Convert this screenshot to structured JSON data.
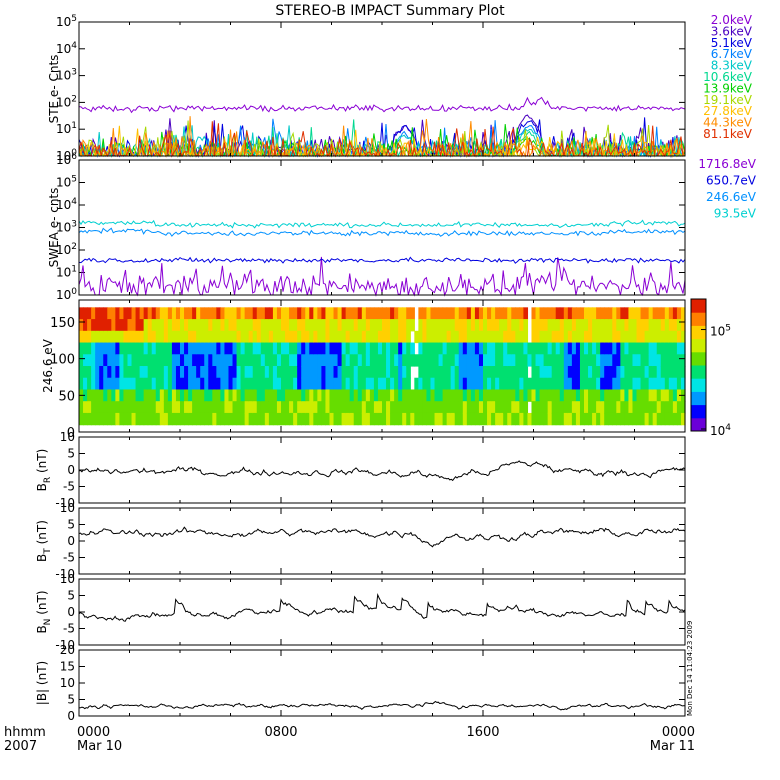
{
  "title": "STEREO-B IMPACT Summary Plot",
  "timestamp_label": "Mon Dec 14 11:04:23 2009",
  "time_axis": {
    "row1_label": "hhmm",
    "row2_label": "2007",
    "ticks": [
      {
        "hour": 0,
        "top": "0000",
        "bottom": "Mar 10"
      },
      {
        "hour": 8,
        "top": "0800",
        "bottom": ""
      },
      {
        "hour": 16,
        "top": "1600",
        "bottom": ""
      },
      {
        "hour": 24,
        "top": "0000",
        "bottom": "Mar 11"
      }
    ],
    "range_hours": [
      0,
      24
    ]
  },
  "colorbar": {
    "tick_labels": [
      {
        "base": "10",
        "exp": "5",
        "value": 100000
      },
      {
        "base": "10",
        "exp": "4",
        "value": 10000
      }
    ],
    "colors": [
      "#6a00d8",
      "#0000ff",
      "#0099ff",
      "#00e5e5",
      "#00e070",
      "#66dd00",
      "#ccee00",
      "#ffd000",
      "#ff8000",
      "#e02000"
    ]
  },
  "chart_data": [
    {
      "type": "line",
      "id": "ste",
      "ylabel": "STE e- Cnts",
      "yscale": "log",
      "ylim": [
        1,
        100000
      ],
      "ytick_labels": [
        {
          "base": "10",
          "exp": "0"
        },
        {
          "base": "10",
          "exp": "1"
        },
        {
          "base": "10",
          "exp": "2"
        },
        {
          "base": "10",
          "exp": "3"
        },
        {
          "base": "10",
          "exp": "4"
        },
        {
          "base": "10",
          "exp": "5"
        }
      ],
      "series": [
        {
          "name": "2.0keV",
          "color": "#8a00d4",
          "baseline": 60,
          "peaks": [
            [
              12.9,
              95
            ],
            [
              17.8,
              160
            ],
            [
              18.3,
              200
            ]
          ]
        },
        {
          "name": "3.6keV",
          "color": "#4a00c0",
          "baseline": 1.5,
          "peaks": [
            [
              12.9,
              18
            ],
            [
              17.8,
              40
            ]
          ]
        },
        {
          "name": "5.1keV",
          "color": "#0000e0",
          "baseline": 1.4,
          "peaks": [
            [
              12.9,
              15
            ],
            [
              17.8,
              30
            ]
          ]
        },
        {
          "name": "6.7keV",
          "color": "#0080ff",
          "baseline": 1.3,
          "peaks": [
            [
              12.9,
              10
            ],
            [
              17.8,
              20
            ]
          ]
        },
        {
          "name": "8.3keV",
          "color": "#00c8c8",
          "baseline": 1.25,
          "peaks": [
            [
              12.9,
              8
            ],
            [
              17.8,
              14
            ]
          ]
        },
        {
          "name": "10.6keV",
          "color": "#00d890",
          "baseline": 1.2,
          "peaks": [
            [
              17.8,
              10
            ]
          ]
        },
        {
          "name": "13.9keV",
          "color": "#00d000",
          "baseline": 1.2,
          "peaks": [
            [
              17.8,
              6
            ]
          ]
        },
        {
          "name": "19.1keV",
          "color": "#a8d800",
          "baseline": 1.15,
          "peaks": [
            [
              17.8,
              4
            ]
          ]
        },
        {
          "name": "27.8keV",
          "color": "#ffc000",
          "baseline": 1.15,
          "peaks": [
            [
              17.8,
              3
            ]
          ]
        },
        {
          "name": "44.3keV",
          "color": "#ff8c00",
          "baseline": 1.4,
          "peaks": []
        },
        {
          "name": "81.1keV",
          "color": "#e03000",
          "baseline": 1.1,
          "peaks": []
        }
      ]
    },
    {
      "type": "line",
      "id": "swea",
      "ylabel": "SWEA e- cnts",
      "yscale": "log",
      "ylim": [
        1,
        1000000
      ],
      "ytick_labels": [
        {
          "base": "10",
          "exp": "0"
        },
        {
          "base": "10",
          "exp": "1"
        },
        {
          "base": "10",
          "exp": "2"
        },
        {
          "base": "10",
          "exp": "3"
        },
        {
          "base": "10",
          "exp": "4"
        },
        {
          "base": "10",
          "exp": "5"
        },
        {
          "base": "10",
          "exp": "6"
        }
      ],
      "series": [
        {
          "name": "1716.8eV",
          "color": "#8a00d4",
          "baseline": 2.5
        },
        {
          "name": "650.7eV",
          "color": "#0000e0",
          "baseline": 35
        },
        {
          "name": "246.6eV",
          "color": "#0090ff",
          "baseline": 550
        },
        {
          "name": "93.5eV",
          "color": "#00d0d0",
          "baseline": 1300
        }
      ]
    },
    {
      "type": "heatmap",
      "id": "pad",
      "ylabel": "246.6 eV",
      "ylim": [
        0,
        180
      ],
      "yticks": [
        0,
        50,
        100,
        150
      ],
      "zscale": "log",
      "zlim": [
        10000,
        200000
      ]
    },
    {
      "type": "line",
      "id": "br",
      "ylabel_base": "B",
      "ylabel_sub": "R",
      "ylabel_unit": "(nT)",
      "ylim": [
        -10,
        10
      ],
      "yticks": [
        10,
        5,
        0,
        -5,
        -10
      ],
      "baseline": -0.5,
      "color": "#000000"
    },
    {
      "type": "line",
      "id": "bt",
      "ylabel_base": "B",
      "ylabel_sub": "T",
      "ylabel_unit": "(nT)",
      "ylim": [
        -10,
        10
      ],
      "yticks": [
        10,
        5,
        0,
        -5,
        -10
      ],
      "baseline": 2.5,
      "color": "#000000"
    },
    {
      "type": "line",
      "id": "bn",
      "ylabel_base": "B",
      "ylabel_sub": "N",
      "ylabel_unit": "(nT)",
      "ylim": [
        -10,
        10
      ],
      "yticks": [
        10,
        5,
        0,
        -5,
        -10
      ],
      "baseline": -1.0,
      "color": "#000000"
    },
    {
      "type": "line",
      "id": "bmag",
      "ylabel": "|B| (nT)",
      "ylim": [
        0,
        20
      ],
      "yticks": [
        20,
        15,
        10,
        5,
        0
      ],
      "baseline": 3.0,
      "color": "#000000"
    }
  ]
}
